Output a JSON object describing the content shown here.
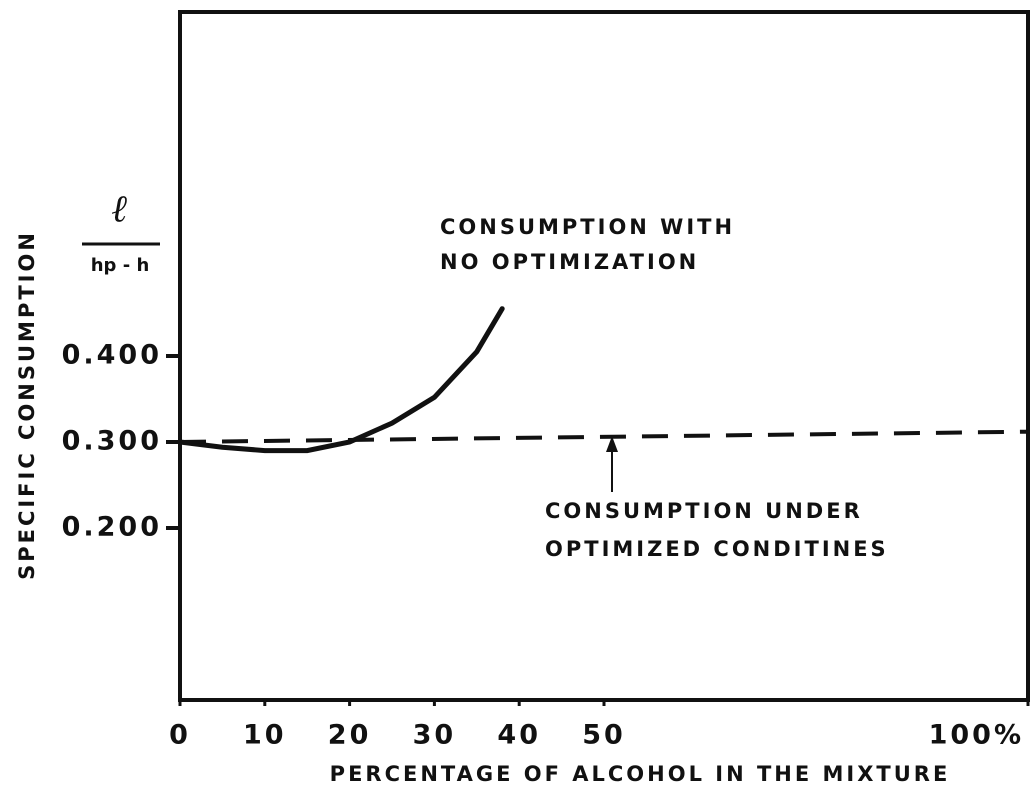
{
  "chart_data": {
    "type": "line",
    "y_label": "SPECIFIC CONSUMPTION",
    "y_units": {
      "numerator": "ℓ",
      "denominator": "hp - h"
    },
    "x_label": "PERCENTAGE OF ALCOHOL IN THE MIXTURE",
    "xlim": [
      0,
      100
    ],
    "xticks": [
      0,
      10,
      20,
      30,
      40,
      50,
      {
        "value": 100,
        "label": "100%"
      }
    ],
    "ylim": [
      0,
      0.8
    ],
    "yticks": [
      {
        "value": 0.2,
        "label": "0.200"
      },
      {
        "value": 0.3,
        "label": "0.300"
      },
      {
        "value": 0.4,
        "label": "0.400"
      }
    ],
    "series": [
      {
        "color": "#111111",
        "dash": false,
        "x": [
          0,
          5,
          10,
          15,
          20,
          25,
          30,
          35,
          38
        ],
        "values": [
          0.3,
          0.294,
          0.29,
          0.29,
          0.3,
          0.322,
          0.352,
          0.405,
          0.455
        ]
      },
      {
        "color": "#111111",
        "dash": true,
        "x": [
          0,
          100
        ],
        "values": [
          0.3,
          0.312
        ]
      }
    ],
    "annotations": [
      {
        "lines": [
          "CONSUMPTION  WITH",
          "NO  OPTIMIZATION"
        ]
      },
      {
        "lines": [
          "CONSUMPTION  UNDER",
          "OPTIMIZED  CONDITINES"
        ]
      }
    ]
  }
}
